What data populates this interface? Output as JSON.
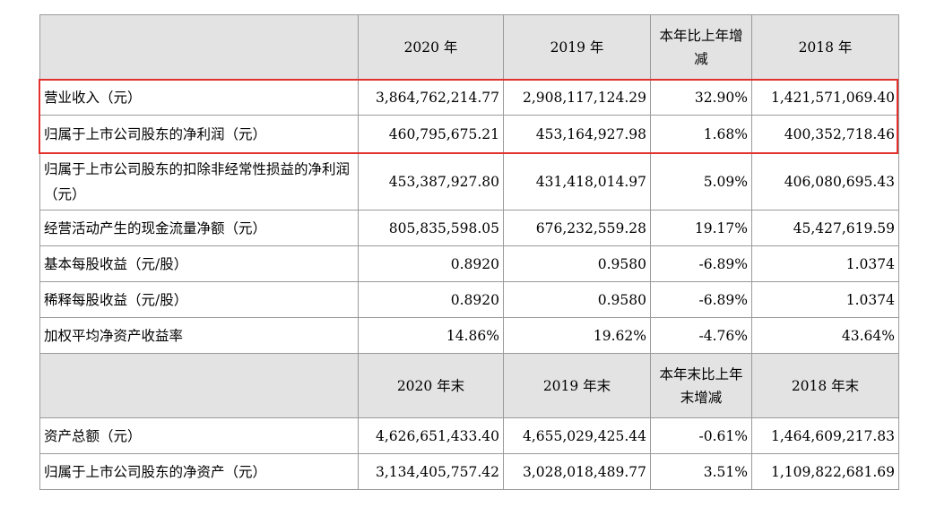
{
  "header1": {
    "blank": "",
    "col2020": "2020 年",
    "col2019": "2019 年",
    "change": "本年比上年增减",
    "col2018": "2018 年"
  },
  "rows1": [
    {
      "label": "营业收入（元）",
      "v2020": "3,864,762,214.77",
      "v2019": "2,908,117,124.29",
      "chg": "32.90%",
      "v2018": "1,421,571,069.40"
    },
    {
      "label": "归属于上市公司股东的净利润（元）",
      "v2020": "460,795,675.21",
      "v2019": "453,164,927.98",
      "chg": "1.68%",
      "v2018": "400,352,718.46"
    },
    {
      "label": "归属于上市公司股东的扣除非经常性损益的净利润（元）",
      "v2020": "453,387,927.80",
      "v2019": "431,418,014.97",
      "chg": "5.09%",
      "v2018": "406,080,695.43"
    },
    {
      "label": "经营活动产生的现金流量净额（元）",
      "v2020": "805,835,598.05",
      "v2019": "676,232,559.28",
      "chg": "19.17%",
      "v2018": "45,427,619.59"
    },
    {
      "label": "基本每股收益（元/股）",
      "v2020": "0.8920",
      "v2019": "0.9580",
      "chg": "-6.89%",
      "v2018": "1.0374"
    },
    {
      "label": "稀释每股收益（元/股）",
      "v2020": "0.8920",
      "v2019": "0.9580",
      "chg": "-6.89%",
      "v2018": "1.0374"
    },
    {
      "label": "加权平均净资产收益率",
      "v2020": "14.86%",
      "v2019": "19.62%",
      "chg": "-4.76%",
      "v2018": "43.64%"
    }
  ],
  "header2": {
    "blank": "",
    "col2020": "2020 年末",
    "col2019": "2019 年末",
    "change": "本年末比上年末增减",
    "col2018": "2018 年末"
  },
  "rows2": [
    {
      "label": "资产总额（元）",
      "v2020": "4,626,651,433.40",
      "v2019": "4,655,029,425.44",
      "chg": "-0.61%",
      "v2018": "1,464,609,217.83"
    },
    {
      "label": "归属于上市公司股东的净资产（元）",
      "v2020": "3,134,405,757.42",
      "v2019": "3,028,018,489.77",
      "chg": "3.51%",
      "v2018": "1,109,822,681.69"
    }
  ],
  "highlight_color": "#e3312d"
}
